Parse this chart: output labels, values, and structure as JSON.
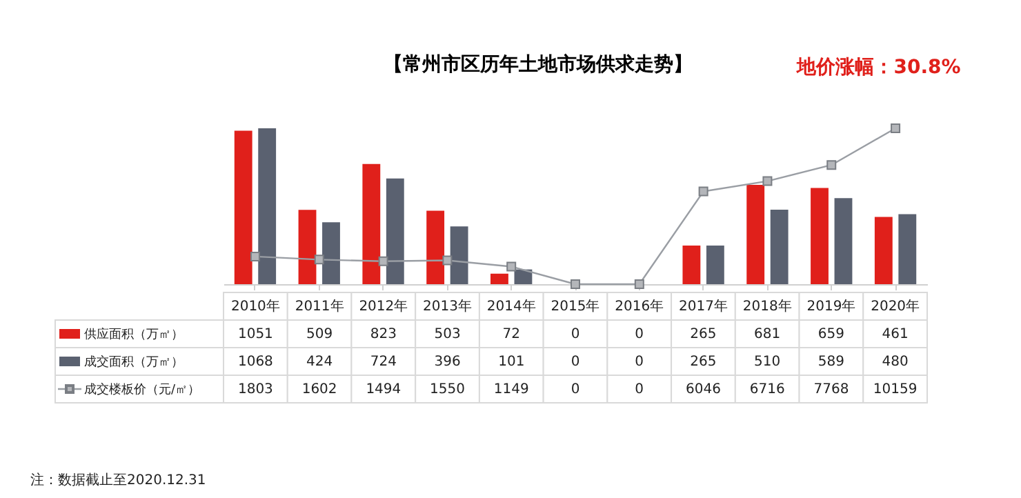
{
  "chart_data": {
    "type": "bar",
    "title": "【常州市区历年土地市场供求走势】",
    "categories": [
      "2010年",
      "2011年",
      "2012年",
      "2013年",
      "2014年",
      "2015年",
      "2016年",
      "2017年",
      "2018年",
      "2019年",
      "2020年"
    ],
    "series": [
      {
        "name": "供应面积（万㎡）",
        "color": "#e0201b",
        "values": [
          1051,
          509,
          823,
          503,
          72,
          0,
          0,
          265,
          681,
          659,
          461
        ]
      },
      {
        "name": "成交面积（万㎡）",
        "color": "#5a6170",
        "values": [
          1068,
          424,
          724,
          396,
          101,
          0,
          0,
          265,
          510,
          589,
          480
        ]
      },
      {
        "name": "成交楼板价（元/㎡）",
        "type": "line",
        "axis": "y2",
        "color": "#9a9ea4",
        "marker": "square",
        "values": [
          1803,
          1602,
          1494,
          1550,
          1149,
          0,
          0,
          6046,
          6716,
          7768,
          10159
        ]
      }
    ],
    "tick_labels": false,
    "data_labels": true,
    "legend": "bottom",
    "annotations": [
      "地价涨幅：30.8%",
      "注：数据截止至2020.12.31"
    ]
  }
}
